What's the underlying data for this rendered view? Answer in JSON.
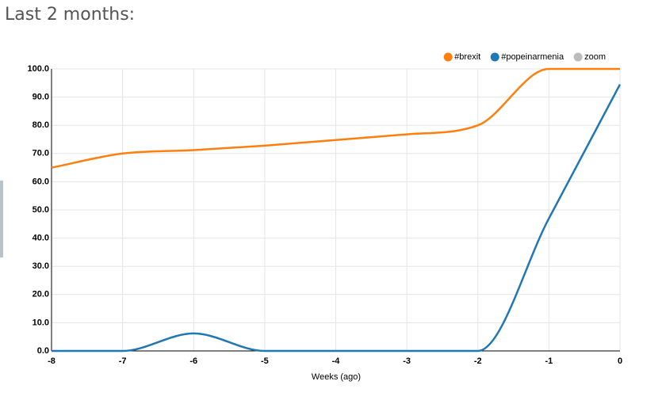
{
  "page_title": "Last 2 months:",
  "chart_data": {
    "type": "line",
    "x_label": "Weeks (ago)",
    "x": [
      -8,
      -7,
      -6,
      -5,
      -4,
      -3,
      -2,
      -1,
      0
    ],
    "series": [
      {
        "name": "#brexit",
        "color": "#ff7f0e",
        "values": [
          65,
          70,
          71.2,
          72.8,
          74.8,
          76.8,
          80,
          100,
          100
        ]
      },
      {
        "name": "#popeinarmenia",
        "color": "#1f77b4",
        "values": [
          0,
          0,
          6.2,
          0,
          0,
          0,
          0,
          47,
          94.5
        ]
      }
    ],
    "legend_extra": [
      {
        "name": "zoom",
        "color": "#bbbbbb"
      }
    ],
    "xlim": [
      -8,
      0
    ],
    "xticks": [
      -8,
      -7,
      -6,
      -5,
      -4,
      -3,
      -2,
      -1,
      0
    ],
    "ylim": [
      0,
      100
    ],
    "yticks": [
      {
        "value": 0,
        "label": "0.0"
      },
      {
        "value": 10,
        "label": "10.0"
      },
      {
        "value": 20,
        "label": "20.0"
      },
      {
        "value": 30,
        "label": "30.0"
      },
      {
        "value": 40,
        "label": "40.0"
      },
      {
        "value": 50,
        "label": "50.0"
      },
      {
        "value": 60,
        "label": "60.0"
      },
      {
        "value": 70,
        "label": "70.0"
      },
      {
        "value": 80,
        "label": "80.0"
      },
      {
        "value": 90,
        "label": "90.0"
      },
      {
        "value": 100,
        "label": "100.0"
      }
    ],
    "grid": true,
    "legend": "top-right"
  }
}
